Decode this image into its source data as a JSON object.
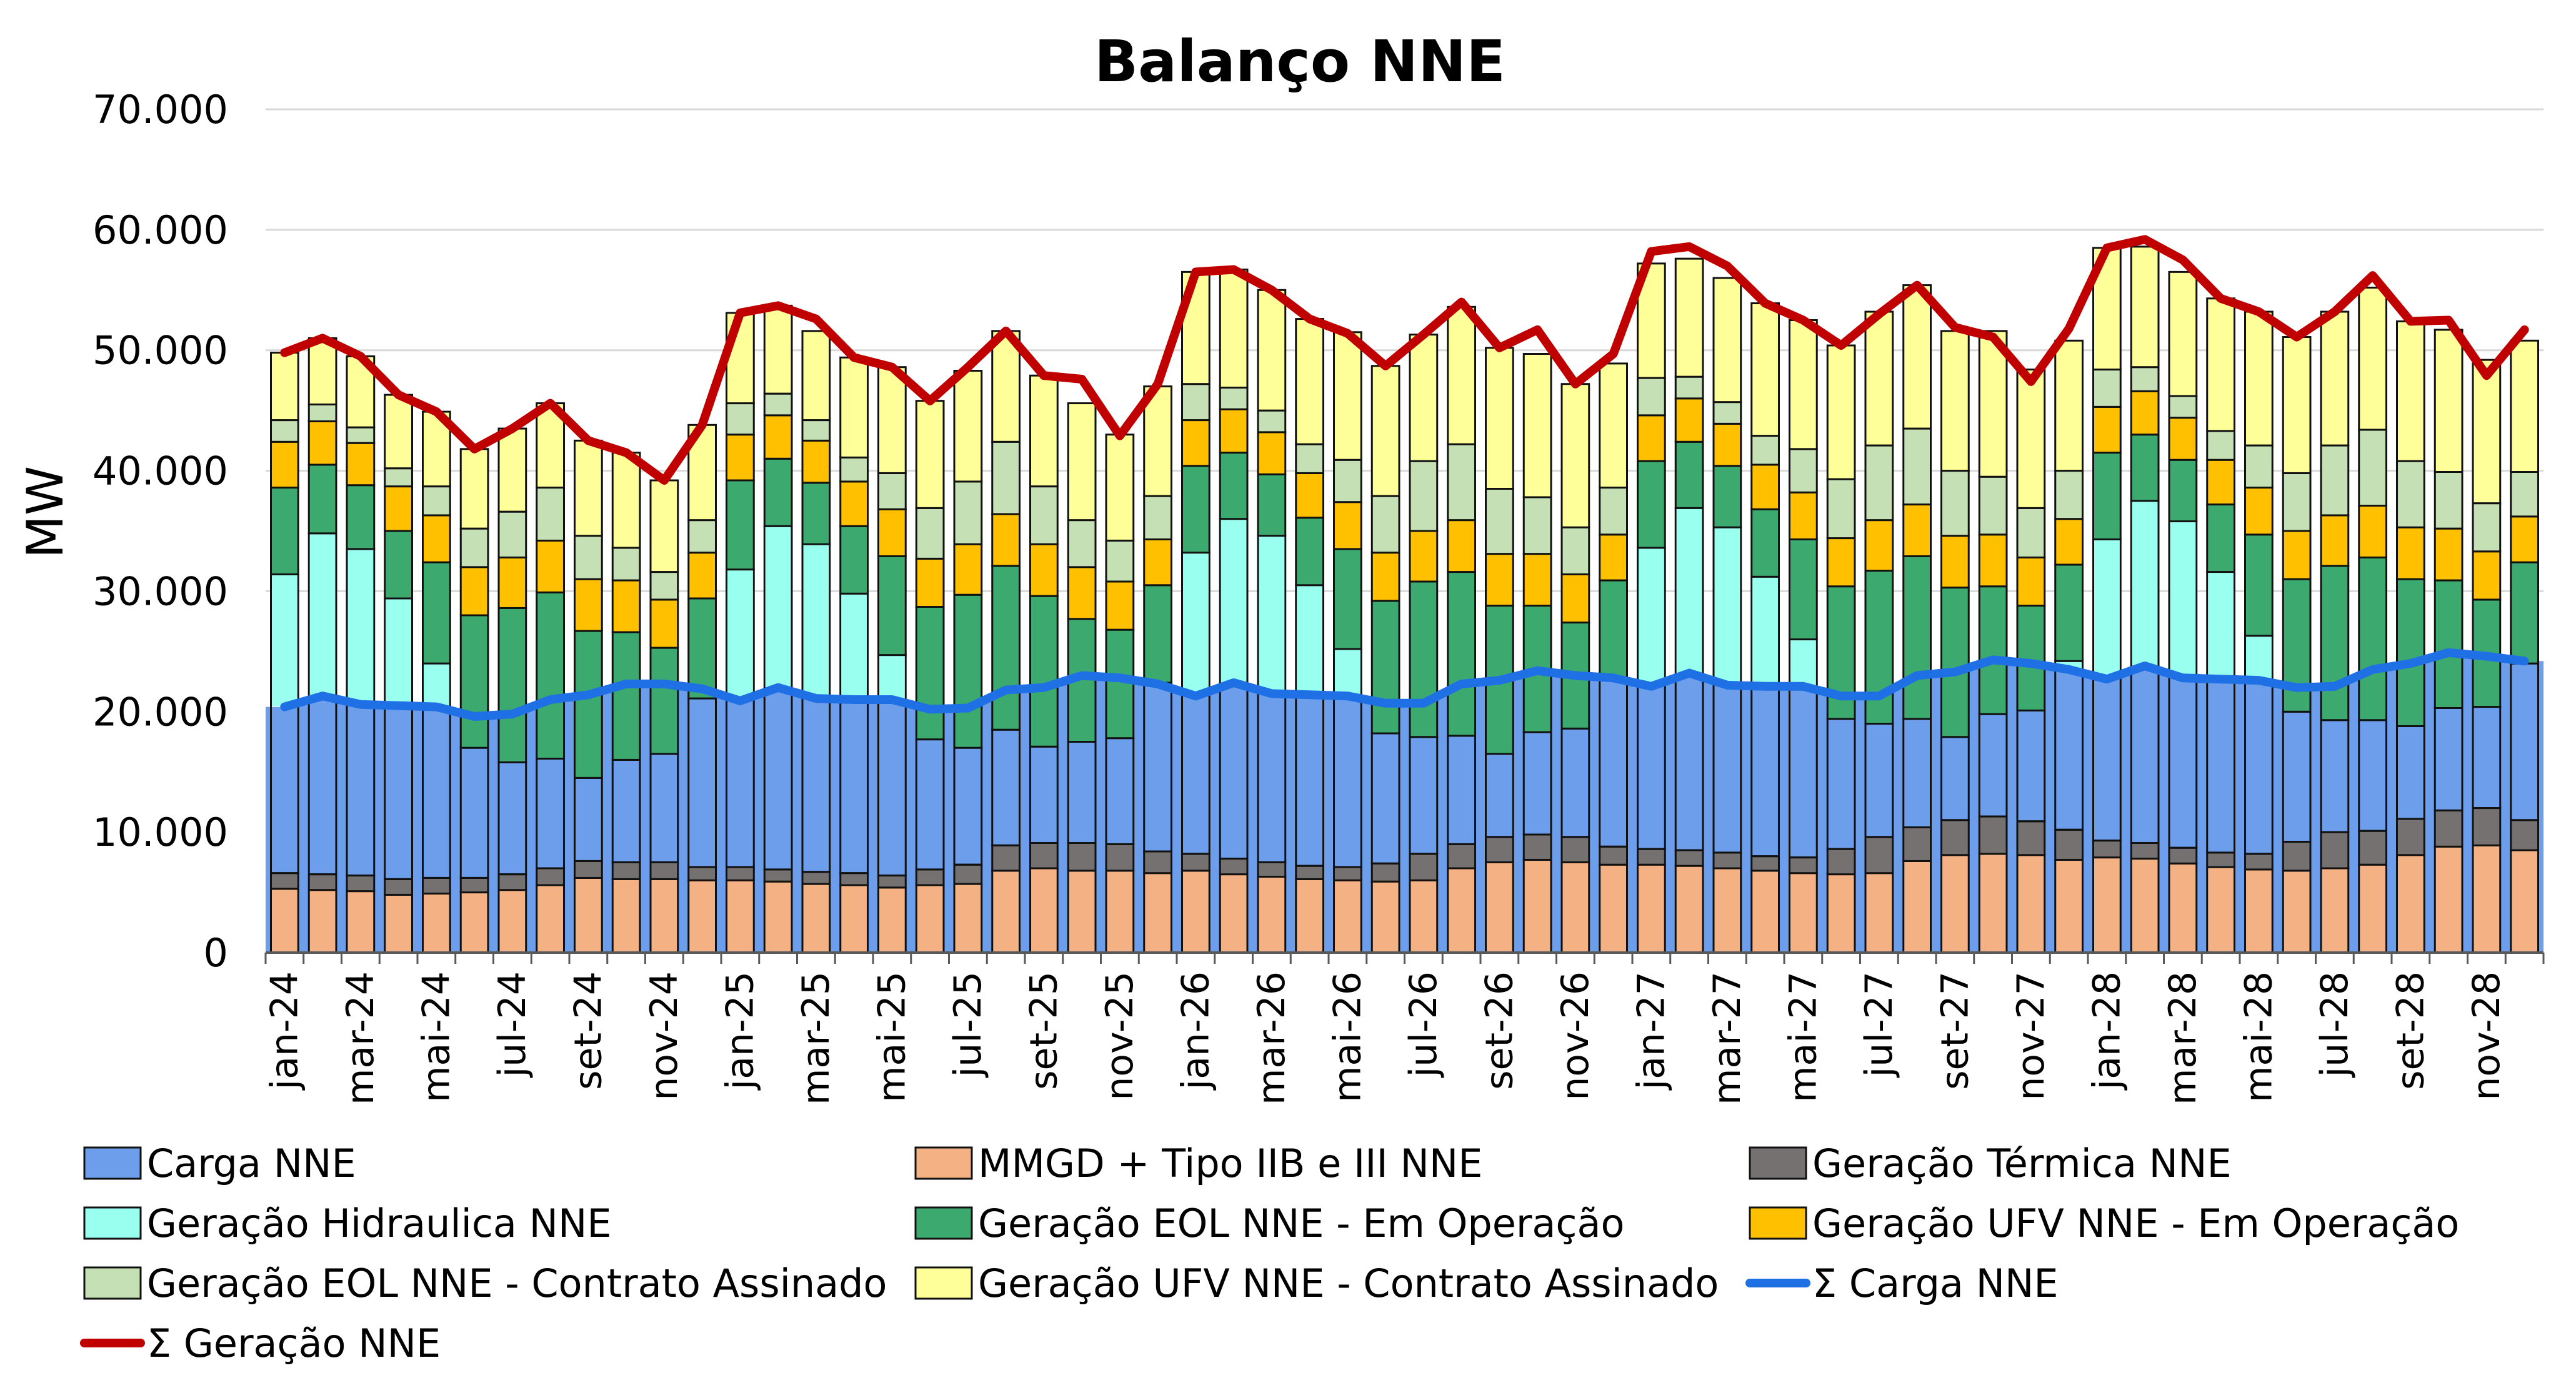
{
  "chart_data": {
    "type": "bar",
    "title": "Balanço NNE",
    "ylabel": "MW",
    "xlabel": "",
    "ylim": [
      0,
      70000
    ],
    "yticks": [
      0,
      10000,
      20000,
      30000,
      40000,
      50000,
      60000,
      70000
    ],
    "ytick_labels": [
      "0",
      "10.000",
      "20.000",
      "30.000",
      "40.000",
      "50.000",
      "60.000",
      "70.000"
    ],
    "grid": true,
    "legend_position": "bottom",
    "categories": [
      "jan-24",
      "fev-24",
      "mar-24",
      "abr-24",
      "mai-24",
      "jun-24",
      "jul-24",
      "ago-24",
      "set-24",
      "out-24",
      "nov-24",
      "dez-24",
      "jan-25",
      "fev-25",
      "mar-25",
      "abr-25",
      "mai-25",
      "jun-25",
      "jul-25",
      "ago-25",
      "set-25",
      "out-25",
      "nov-25",
      "dez-25",
      "jan-26",
      "fev-26",
      "mar-26",
      "abr-26",
      "mai-26",
      "jun-26",
      "jul-26",
      "ago-26",
      "set-26",
      "out-26",
      "nov-26",
      "dez-26",
      "jan-27",
      "fev-27",
      "mar-27",
      "abr-27",
      "mai-27",
      "jun-27",
      "jul-27",
      "ago-27",
      "set-27",
      "out-27",
      "nov-27",
      "dez-27",
      "jan-28",
      "fev-28",
      "mar-28",
      "abr-28",
      "mai-28",
      "jun-28",
      "jul-28",
      "ago-28",
      "set-28",
      "out-28",
      "nov-28",
      "dez-28"
    ],
    "xtick_labels": [
      "jan-24",
      "mar-24",
      "mai-24",
      "jul-24",
      "set-24",
      "nov-24",
      "jan-25",
      "mar-25",
      "mai-25",
      "jul-25",
      "set-25",
      "nov-25",
      "jan-26",
      "mar-26",
      "mai-26",
      "jul-26",
      "set-26",
      "nov-26",
      "jan-27",
      "mar-27",
      "mai-27",
      "jul-27",
      "set-27",
      "nov-27",
      "jan-28",
      "mar-28",
      "mai-28",
      "jul-28",
      "set-28",
      "nov-28"
    ],
    "stack_series": [
      {
        "name": "MMGD + Tipo IIB e III NNE",
        "color": "#F4B183",
        "values": [
          5300,
          5200,
          5100,
          4800,
          4900,
          5000,
          5200,
          5600,
          6200,
          6100,
          6100,
          6000,
          6000,
          5900,
          5700,
          5600,
          5400,
          5600,
          5700,
          6800,
          7000,
          6800,
          6800,
          6600,
          6800,
          6500,
          6300,
          6100,
          6000,
          5900,
          6000,
          7000,
          7500,
          7700,
          7500,
          7300,
          7300,
          7200,
          7000,
          6800,
          6600,
          6500,
          6600,
          7600,
          8100,
          8200,
          8100,
          7700,
          7900,
          7800,
          7400,
          7100,
          6900,
          6800,
          7000,
          7300,
          8100,
          8800,
          8900,
          8500
        ]
      },
      {
        "name": "Geração Térmica NNE",
        "color": "#767171",
        "values": [
          1300,
          1300,
          1300,
          1300,
          1300,
          1200,
          1300,
          1400,
          1400,
          1400,
          1400,
          1100,
          1100,
          1000,
          1000,
          1000,
          1000,
          1300,
          1600,
          2100,
          2100,
          2300,
          2200,
          1800,
          1400,
          1300,
          1200,
          1100,
          1100,
          1500,
          2200,
          2000,
          2100,
          2100,
          2100,
          1500,
          1300,
          1300,
          1300,
          1200,
          1300,
          2100,
          3000,
          2800,
          2900,
          3100,
          2800,
          2500,
          1400,
          1300,
          1300,
          1200,
          1300,
          2400,
          3000,
          2800,
          3000,
          3000,
          3100,
          2500
        ]
      },
      {
        "name": "Geração Hidraulica NNE",
        "color": "#99FFEE",
        "values": [
          24800,
          28300,
          27100,
          23300,
          17800,
          10800,
          9300,
          9100,
          6900,
          8500,
          9000,
          14000,
          24700,
          28500,
          27200,
          23200,
          18300,
          10800,
          9700,
          9600,
          8000,
          8400,
          8800,
          14000,
          25000,
          28200,
          27100,
          23300,
          18100,
          10800,
          9700,
          9000,
          6900,
          8500,
          9000,
          14000,
          25000,
          28400,
          27000,
          23200,
          18100,
          10800,
          9400,
          9000,
          6900,
          8500,
          9200,
          14000,
          25000,
          28400,
          27100,
          23300,
          18100,
          10800,
          9300,
          9200,
          7700,
          8500,
          8400,
          13000
        ]
      },
      {
        "name": "Geração EOL NNE - Em Operação",
        "color": "#3CAA6E",
        "values": [
          7200,
          5700,
          5300,
          5600,
          8400,
          11000,
          12800,
          13800,
          12200,
          10600,
          8800,
          8300,
          7400,
          5600,
          5100,
          5600,
          8200,
          11000,
          12700,
          13600,
          12500,
          10200,
          9000,
          8100,
          7200,
          5500,
          5100,
          5600,
          8300,
          11000,
          12900,
          13600,
          12300,
          10500,
          8800,
          8100,
          7200,
          5500,
          5100,
          5600,
          8300,
          11000,
          12700,
          13500,
          12400,
          10600,
          8700,
          8000,
          7200,
          5500,
          5100,
          5600,
          8400,
          11000,
          12800,
          13500,
          12200,
          10600,
          8900,
          8400
        ]
      },
      {
        "name": "Geração UFV NNE - Em Operação",
        "color": "#FFC000",
        "values": [
          3800,
          3600,
          3500,
          3700,
          3900,
          4000,
          4200,
          4300,
          4300,
          4300,
          4000,
          3800,
          3800,
          3600,
          3500,
          3700,
          3900,
          4000,
          4200,
          4300,
          4300,
          4300,
          4000,
          3800,
          3800,
          3600,
          3500,
          3700,
          3900,
          4000,
          4200,
          4300,
          4300,
          4300,
          4000,
          3800,
          3800,
          3600,
          3500,
          3700,
          3900,
          4000,
          4200,
          4300,
          4300,
          4300,
          4000,
          3800,
          3800,
          3600,
          3500,
          3700,
          3900,
          4000,
          4200,
          4300,
          4300,
          4300,
          4000,
          3800
        ]
      },
      {
        "name": "Geração EOL NNE - Contrato Assinado",
        "color": "#C5E0B4",
        "values": [
          1800,
          1400,
          1300,
          1500,
          2400,
          3200,
          3800,
          4400,
          3600,
          2700,
          2300,
          2700,
          2600,
          1800,
          1700,
          2000,
          3000,
          4200,
          5200,
          6000,
          4800,
          3900,
          3400,
          3600,
          3000,
          1800,
          1800,
          2400,
          3500,
          4700,
          5800,
          6300,
          5400,
          4700,
          3900,
          3900,
          3100,
          1800,
          1800,
          2400,
          3600,
          4900,
          6200,
          6300,
          5400,
          4800,
          4100,
          4000,
          3100,
          2000,
          1800,
          2400,
          3500,
          4800,
          5800,
          6300,
          5500,
          4700,
          4000,
          3700
        ]
      },
      {
        "name": "Geração UFV NNE - Contrato Assinado",
        "color": "#FFFF99",
        "values": [
          5600,
          5500,
          5900,
          6100,
          6200,
          6600,
          6900,
          7000,
          7900,
          7900,
          7600,
          7900,
          7500,
          7300,
          7400,
          8300,
          8800,
          8900,
          9200,
          9200,
          9200,
          9700,
          8800,
          9100,
          9300,
          9800,
          10000,
          10400,
          10600,
          10800,
          10500,
          11400,
          11700,
          11900,
          11900,
          10300,
          9500,
          9800,
          10300,
          11000,
          10700,
          11100,
          11100,
          11900,
          11600,
          12100,
          11500,
          10800,
          10100,
          10000,
          10300,
          11000,
          11100,
          11300,
          11100,
          11800,
          11600,
          11800,
          11900,
          10900
        ]
      }
    ],
    "line_series": [
      {
        "name": "Carga NNE",
        "color": "#6D9EEB",
        "values": [
          20400,
          21300,
          20600,
          20500,
          20400,
          19600,
          19800,
          21000,
          21400,
          22300,
          22300,
          21900,
          20900,
          22000,
          21100,
          21000,
          21000,
          20200,
          20300,
          21800,
          22000,
          23000,
          22800,
          22300,
          21300,
          22400,
          21500,
          21400,
          21300,
          20700,
          20700,
          22300,
          22600,
          23400,
          23000,
          22800,
          22100,
          23200,
          22200,
          22100,
          22100,
          21300,
          21300,
          23000,
          23300,
          24300,
          24000,
          23500,
          22700,
          23800,
          22800,
          22700,
          22600,
          22000,
          22100,
          23500,
          24000,
          24900,
          24600,
          24200
        ],
        "kind": "area"
      },
      {
        "name": "Σ Carga NNE",
        "color": "#1F6FE5",
        "values": [
          20400,
          21300,
          20600,
          20500,
          20400,
          19600,
          19800,
          21000,
          21400,
          22300,
          22300,
          21900,
          20900,
          22000,
          21100,
          21000,
          21000,
          20200,
          20300,
          21800,
          22000,
          23000,
          22800,
          22300,
          21300,
          22400,
          21500,
          21400,
          21300,
          20700,
          20700,
          22300,
          22600,
          23400,
          23000,
          22800,
          22100,
          23200,
          22200,
          22100,
          22100,
          21300,
          21300,
          23000,
          23300,
          24300,
          24000,
          23500,
          22700,
          23800,
          22800,
          22700,
          22600,
          22000,
          22100,
          23500,
          24000,
          24900,
          24600,
          24200
        ],
        "kind": "line"
      },
      {
        "name": "Σ Geração NNE",
        "color": "#C00000",
        "values": [
          49800,
          51000,
          49500,
          46300,
          44900,
          41800,
          43500,
          45600,
          42500,
          41500,
          39200,
          43800,
          53100,
          53700,
          52600,
          49400,
          48600,
          45800,
          48600,
          51600,
          47900,
          47600,
          42900,
          47200,
          56500,
          56700,
          55000,
          52600,
          51400,
          48700,
          51300,
          54000,
          50200,
          51700,
          47200,
          49700,
          58200,
          58600,
          57000,
          53900,
          52500,
          50400,
          53000,
          55400,
          51900,
          51100,
          47400,
          51800,
          58500,
          59200,
          57500,
          54300,
          53200,
          51100,
          53200,
          56200,
          52400,
          52500,
          47900,
          51700
        ],
        "kind": "line"
      }
    ]
  },
  "legend": [
    {
      "label": "Carga NNE",
      "kind": "box",
      "color": "#6D9EEB"
    },
    {
      "label": "MMGD + Tipo IIB e III NNE",
      "kind": "box",
      "color": "#F4B183"
    },
    {
      "label": "Geração Térmica NNE",
      "kind": "box",
      "color": "#767171"
    },
    {
      "label": "Geração Hidraulica NNE",
      "kind": "box",
      "color": "#99FFEE"
    },
    {
      "label": "Geração EOL NNE - Em Operação",
      "kind": "box",
      "color": "#3CAA6E"
    },
    {
      "label": "Geração UFV NNE - Em Operação",
      "kind": "box",
      "color": "#FFC000"
    },
    {
      "label": "Geração EOL NNE - Contrato Assinado",
      "kind": "box",
      "color": "#C5E0B4"
    },
    {
      "label": "Geração UFV NNE - Contrato Assinado",
      "kind": "box",
      "color": "#FFFF99"
    },
    {
      "label": "Σ Carga NNE",
      "kind": "line",
      "color": "#1F6FE5"
    },
    {
      "label": "Σ Geração NNE",
      "kind": "line",
      "color": "#C00000"
    }
  ]
}
